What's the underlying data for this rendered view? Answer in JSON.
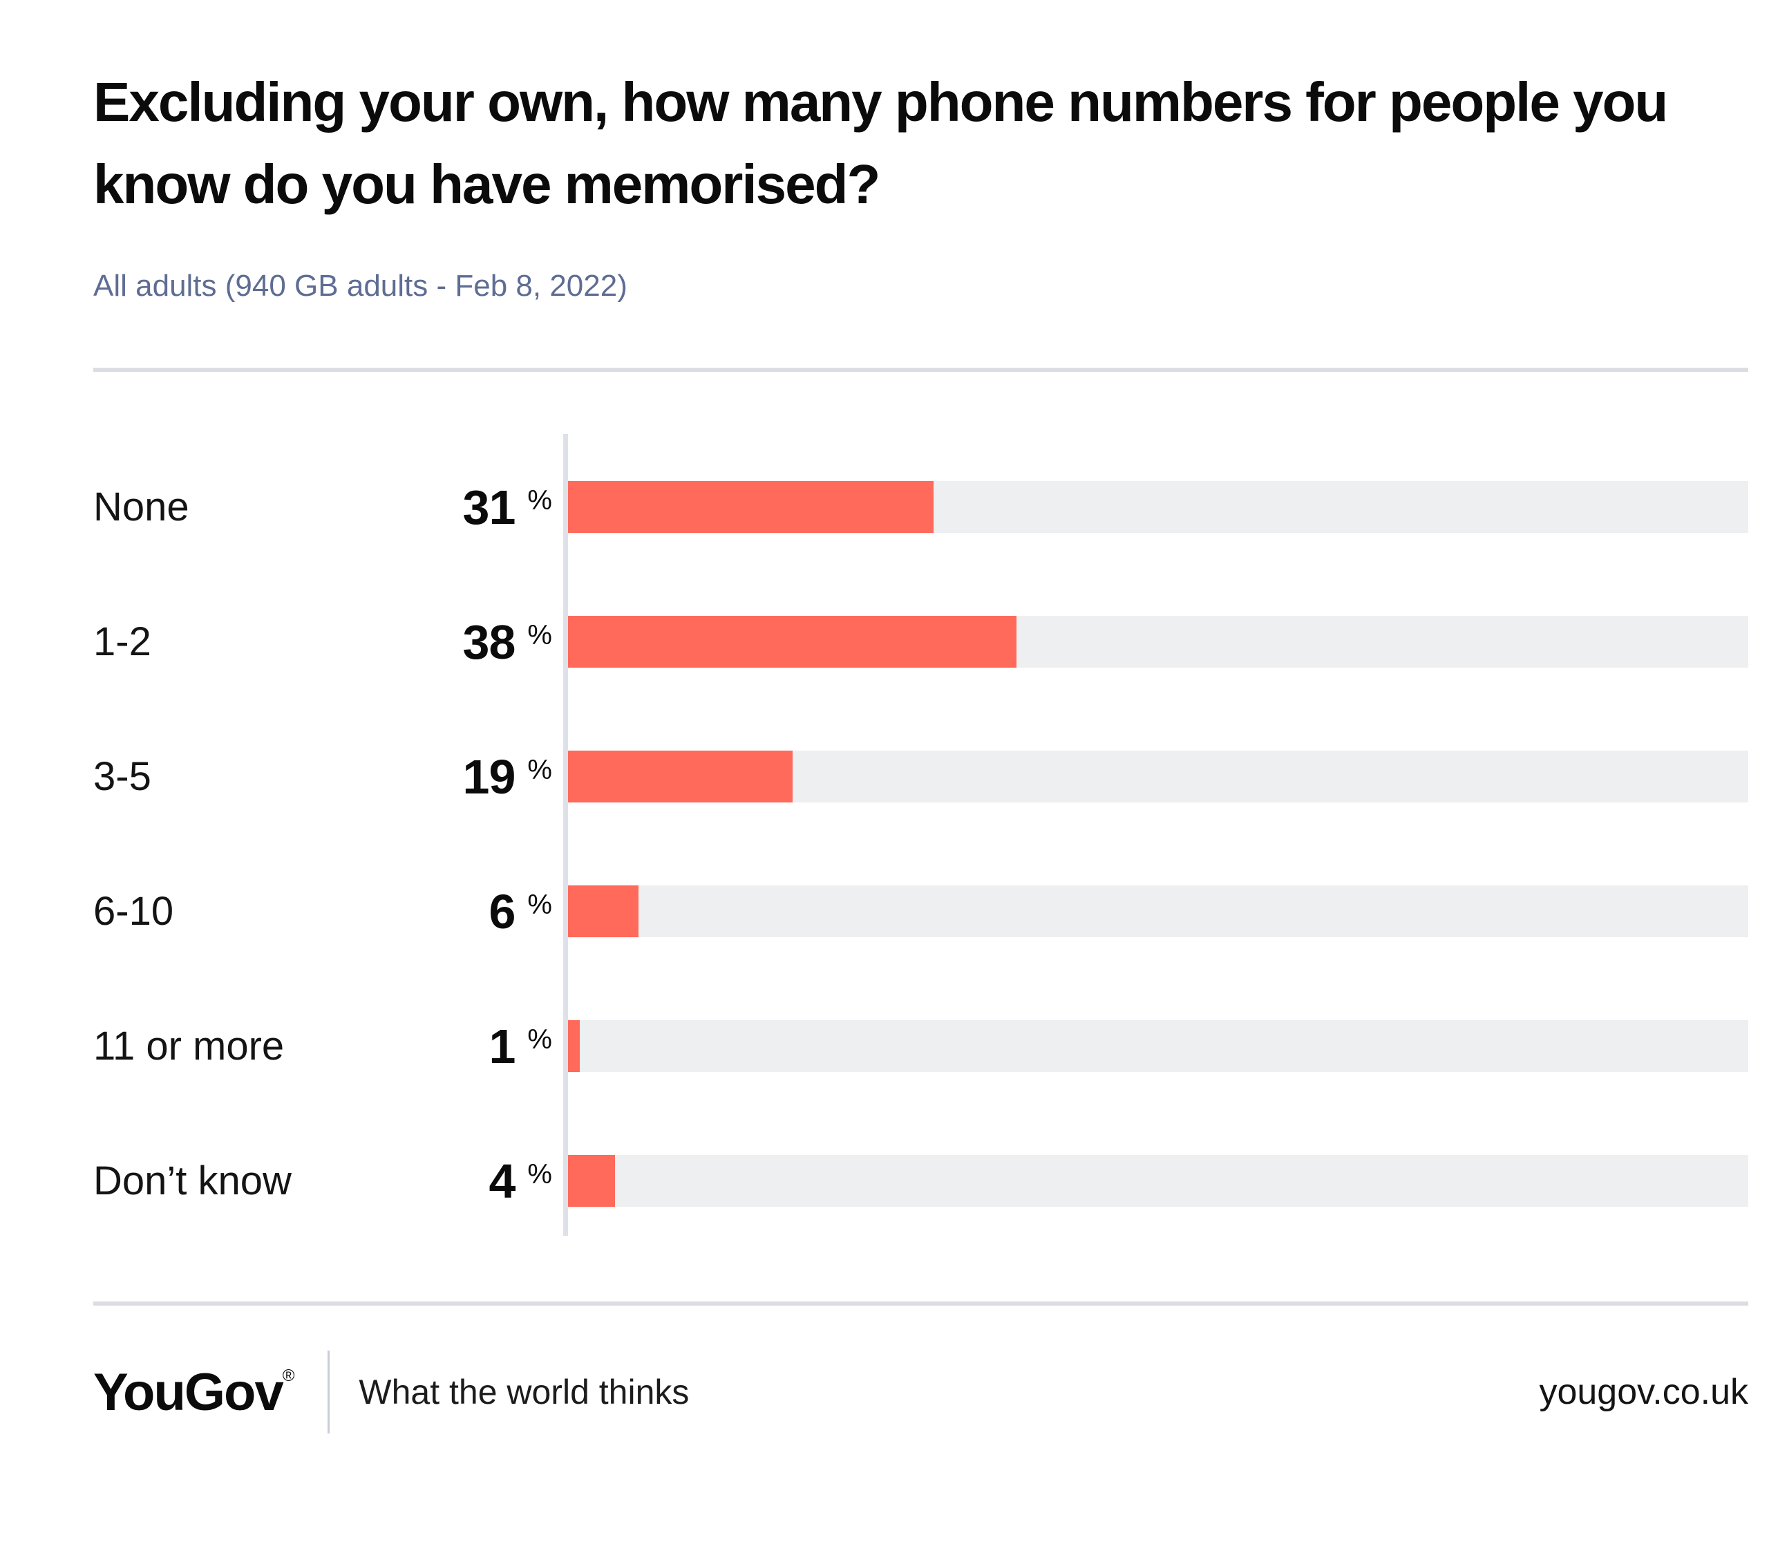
{
  "header": {
    "title": "Excluding your own, how many phone numbers for people you know do you have memorised?",
    "subtitle": "All adults (940 GB adults - Feb 8, 2022)"
  },
  "chart_data": {
    "type": "bar",
    "orientation": "horizontal",
    "title": "Excluding your own, how many phone numbers for people you know do you have memorised?",
    "subtitle": "All adults (940 GB adults - Feb 8, 2022)",
    "categories": [
      "None",
      "1-2",
      "3-5",
      "6-10",
      "11 or more",
      "Don’t know"
    ],
    "values": [
      31,
      38,
      19,
      6,
      1,
      4
    ],
    "unit": "%",
    "xlim": [
      0,
      100
    ],
    "grid": false,
    "legend": false,
    "colors": {
      "bar": "#ff6a5a",
      "track": "#eeeff1",
      "axis_line": "#dfe1e8",
      "subtitle_text": "#5f6d94"
    }
  },
  "footer": {
    "logo_text": "YouGov",
    "registered_mark": "®",
    "slogan": "What the world thinks",
    "url": "yougov.co.uk"
  }
}
